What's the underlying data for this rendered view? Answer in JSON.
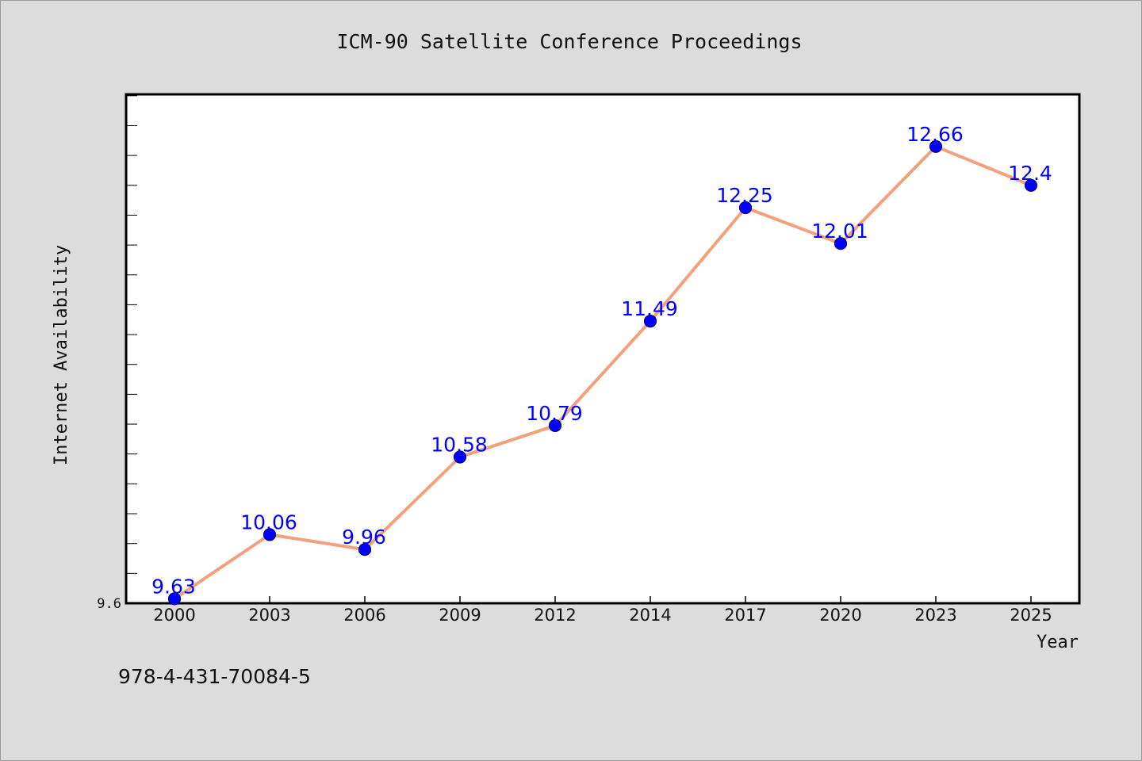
{
  "chart_data": {
    "type": "line",
    "title": "ICM-90 Satellite Conference Proceedings",
    "xlabel": "Year",
    "ylabel": "Internet Availability",
    "categories": [
      "2000",
      "2003",
      "2006",
      "2009",
      "2012",
      "2014",
      "2017",
      "2020",
      "2023",
      "2025"
    ],
    "values": [
      9.63,
      10.06,
      9.96,
      10.58,
      10.79,
      11.49,
      12.25,
      12.01,
      12.66,
      12.4
    ],
    "data_labels": [
      "9.63",
      "10.06",
      "9.96",
      "10.58",
      "10.79",
      "11.49",
      "12.25",
      "12.01",
      "12.66",
      "12.4"
    ],
    "ylim": [
      9.6,
      13.0
    ],
    "y_tick_labels": [
      "9.6"
    ],
    "grid": false,
    "line_color": "#f4a07c",
    "marker_color": "#0000ff",
    "label_color": "#0000ff"
  },
  "footer": {
    "isbn": "978-4-431-70084-5"
  }
}
